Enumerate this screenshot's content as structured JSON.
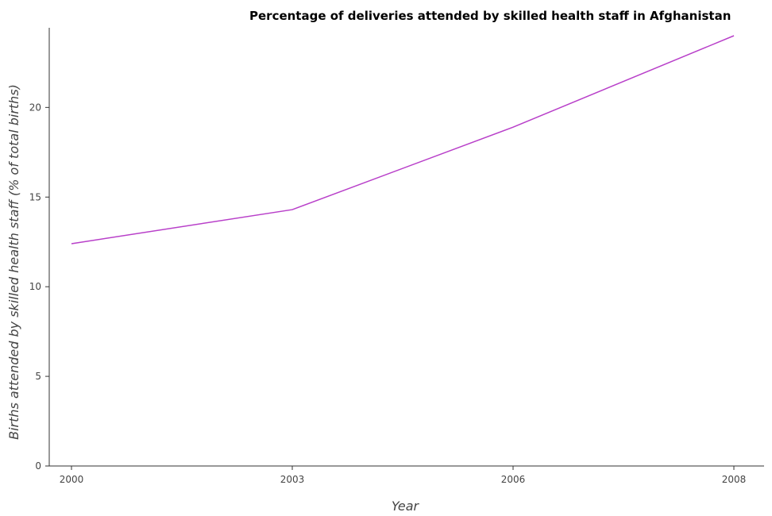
{
  "chart_data": {
    "type": "line",
    "title": "Percentage of deliveries attended by skilled health staff in Afghanistan",
    "xlabel": "Year",
    "ylabel": "Births attended by skilled health staff (% of total births)",
    "categories": [
      "2000",
      "2003",
      "2006",
      "2008"
    ],
    "series": [
      {
        "values": [
          12.4,
          14.3,
          18.9,
          24.0
        ]
      }
    ],
    "ylim": [
      0,
      24
    ],
    "yticks": [
      0,
      5,
      10,
      15,
      20
    ],
    "ytick_labels": [
      "0",
      "5",
      "10",
      "15",
      "20"
    ],
    "grid": false,
    "line_color": "#b83fc9"
  }
}
